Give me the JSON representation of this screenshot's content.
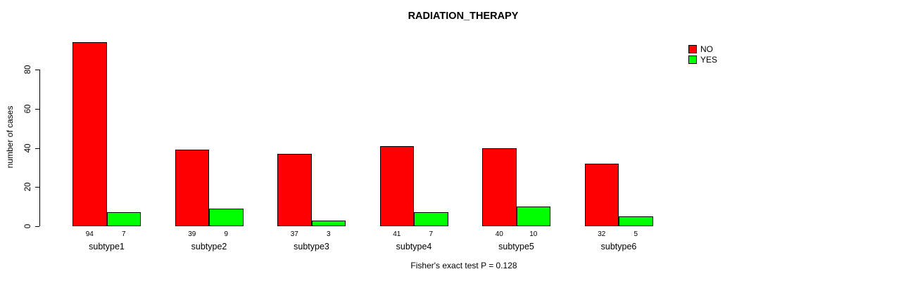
{
  "chart_data": {
    "type": "bar",
    "title": "RADIATION_THERAPY",
    "ylabel": "number of cases",
    "xlabel": "",
    "categories": [
      "subtype1",
      "subtype2",
      "subtype3",
      "subtype4",
      "subtype5",
      "subtype6"
    ],
    "series": [
      {
        "name": "NO",
        "color": "#ff0000",
        "values": [
          94,
          39,
          37,
          41,
          40,
          32
        ]
      },
      {
        "name": "YES",
        "color": "#00ff00",
        "values": [
          7,
          9,
          3,
          7,
          10,
          5
        ]
      }
    ],
    "bar_value_labels": {
      "NO": [
        "94",
        "39",
        "37",
        "41",
        "40",
        "32"
      ],
      "YES": [
        "7",
        "9",
        "3",
        "7",
        "10",
        "5"
      ]
    },
    "yticks": [
      0,
      20,
      40,
      60,
      80
    ],
    "ylim": [
      0,
      94
    ],
    "grid": false,
    "legend_position": "top-right",
    "footnote": "Fisher's exact test P = 0.128",
    "colors": {
      "no": "#ff0000",
      "yes": "#00ff00",
      "axis": "#000000",
      "background": "#ffffff"
    }
  }
}
